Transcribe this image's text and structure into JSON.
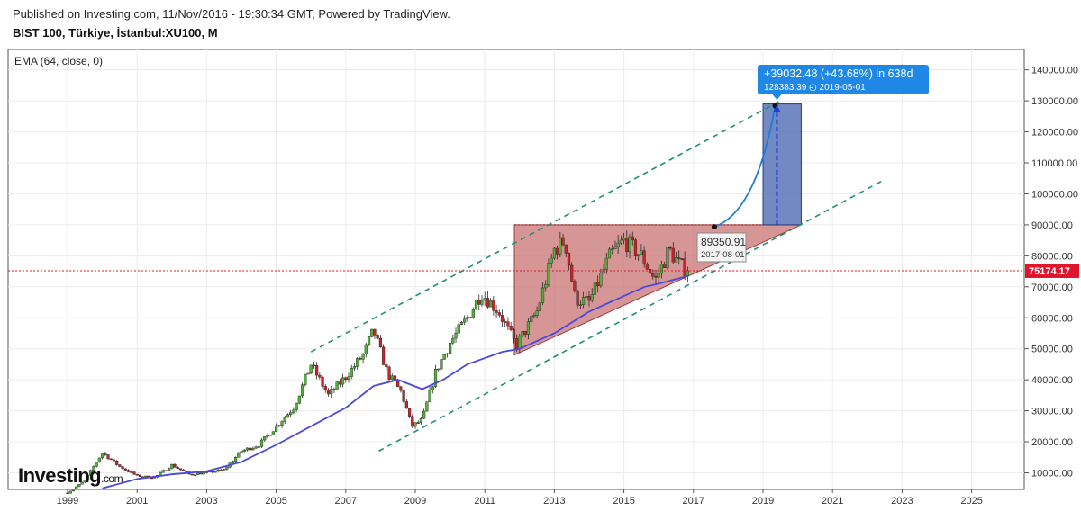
{
  "header": {
    "published": "Published on Investing.com, 11/Nov/2016 - 19:30:34 GMT, Powered by TradingView.",
    "symbol": "BIST 100, Türkiye, İstanbul:XU100, M"
  },
  "logo": {
    "main": "Investing",
    "suffix": ".com"
  },
  "chart_data": {
    "type": "candlestick",
    "indicator_label": "EMA (64, close, 0)",
    "x_range": [
      1998.0,
      2026.8
    ],
    "y_range": [
      5000,
      145000
    ],
    "x_ticks": [
      "1999",
      "2001",
      "2003",
      "2005",
      "2007",
      "2009",
      "2011",
      "2013",
      "2015",
      "2017",
      "2019",
      "2021",
      "2023",
      "2025"
    ],
    "y_ticks": [
      "10000.00",
      "20000.00",
      "30000.00",
      "40000.00",
      "50000.00",
      "60000.00",
      "70000.00",
      "80000.00",
      "90000.00",
      "100000.00",
      "110000.00",
      "120000.00",
      "130000.00",
      "140000.00"
    ],
    "current_price": {
      "value": 75174.17,
      "label": "75174.17"
    },
    "price_path": [
      [
        1999.0,
        3500
      ],
      [
        1999.5,
        7500
      ],
      [
        2000.0,
        16500
      ],
      [
        2000.5,
        12000
      ],
      [
        2001.0,
        9000
      ],
      [
        2001.5,
        8500
      ],
      [
        2002.0,
        12500
      ],
      [
        2002.5,
        9500
      ],
      [
        2003.0,
        10000
      ],
      [
        2003.5,
        11000
      ],
      [
        2004.0,
        17000
      ],
      [
        2004.5,
        19000
      ],
      [
        2005.0,
        25000
      ],
      [
        2005.5,
        31000
      ],
      [
        2006.0,
        45000
      ],
      [
        2006.5,
        35000
      ],
      [
        2007.0,
        41000
      ],
      [
        2007.5,
        48000
      ],
      [
        2007.8,
        56000
      ],
      [
        2008.2,
        42000
      ],
      [
        2008.6,
        36000
      ],
      [
        2008.9,
        25000
      ],
      [
        2009.2,
        27000
      ],
      [
        2009.6,
        43000
      ],
      [
        2010.0,
        52000
      ],
      [
        2010.5,
        60000
      ],
      [
        2010.9,
        68000
      ],
      [
        2011.4,
        62000
      ],
      [
        2011.9,
        51000
      ],
      [
        2012.5,
        62000
      ],
      [
        2013.0,
        82000
      ],
      [
        2013.3,
        85000
      ],
      [
        2013.6,
        66000
      ],
      [
        2014.0,
        65000
      ],
      [
        2014.6,
        80000
      ],
      [
        2015.0,
        85000
      ],
      [
        2015.5,
        80000
      ],
      [
        2015.9,
        72000
      ],
      [
        2016.3,
        82000
      ],
      [
        2016.6,
        77000
      ],
      [
        2016.85,
        75174
      ]
    ],
    "ema_path": [
      [
        2000.0,
        5000
      ],
      [
        2001.0,
        8000
      ],
      [
        2002.0,
        9500
      ],
      [
        2003.0,
        10500
      ],
      [
        2004.0,
        13500
      ],
      [
        2005.0,
        19000
      ],
      [
        2006.0,
        25000
      ],
      [
        2007.0,
        31000
      ],
      [
        2007.8,
        38000
      ],
      [
        2008.5,
        40000
      ],
      [
        2009.2,
        37000
      ],
      [
        2009.8,
        40000
      ],
      [
        2010.5,
        45000
      ],
      [
        2011.5,
        49000
      ],
      [
        2012.0,
        50000
      ],
      [
        2013.0,
        55000
      ],
      [
        2014.0,
        62000
      ],
      [
        2015.0,
        67000
      ],
      [
        2015.6,
        70000
      ],
      [
        2016.0,
        71000
      ],
      [
        2016.85,
        73500
      ]
    ],
    "triangle": {
      "points": [
        [
          2011.85,
          90000
        ],
        [
          2011.85,
          48000
        ],
        [
          2020.1,
          90000
        ]
      ],
      "apex_label": {
        "price": "89350.91",
        "date": "2017-08-01",
        "at": [
          2017.6,
          89350
        ]
      }
    },
    "channel_lines": [
      {
        "from": [
          2006.0,
          49000
        ],
        "to": [
          2019.5,
          130000
        ]
      },
      {
        "from": [
          2007.95,
          17000
        ],
        "to": [
          2022.4,
          104000
        ]
      }
    ],
    "projection": {
      "curve": [
        [
          2017.6,
          89350
        ],
        [
          2018.8,
          94000
        ],
        [
          2019.35,
          128400
        ]
      ],
      "box": {
        "x0": 2019.0,
        "x1": 2020.1,
        "y0": 90000,
        "y1": 129000
      },
      "arrow_x": 2019.4,
      "label": {
        "main": "+39032.48 (+43.68%) in 638d",
        "sub": "128383.39 ◴ 2019-05-01"
      }
    },
    "colors": {
      "up": "#53b03a",
      "down": "#c8252a",
      "ema": "#4a48e0",
      "channel": "#1e8f74",
      "triangle_fill": "#c76e6e",
      "projection_fill": "#5a74b8",
      "price_line": "#e0152b",
      "label_bg": "#1f87e6"
    }
  }
}
